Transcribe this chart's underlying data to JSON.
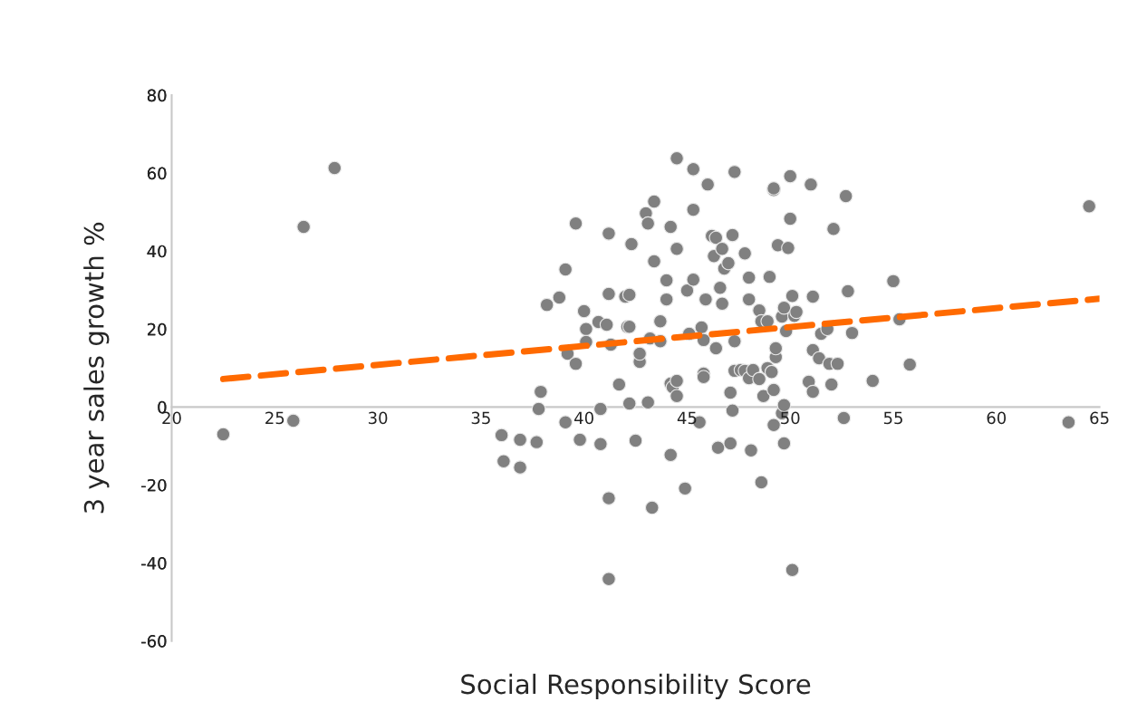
{
  "chart_data": {
    "type": "scatter",
    "xlabel": "Social Responsibility Score",
    "ylabel": "3 year sales growth %",
    "xlim": [
      20,
      65
    ],
    "xticks": [
      20,
      25,
      30,
      35,
      40,
      45,
      50,
      55,
      60,
      65
    ],
    "ylim": [
      -60,
      80
    ],
    "yticks": [
      -60,
      -40,
      -20,
      0,
      20,
      40,
      60,
      80
    ],
    "grid": false,
    "legend": false,
    "series": [
      {
        "color": "#808080",
        "marker": "circle",
        "x": [
          22.5,
          25.9,
          26.4,
          27.9,
          64.5,
          63.5,
          36.0,
          36.1,
          36.9,
          36.9,
          37.7,
          37.9,
          37.8,
          38.2,
          38.8,
          39.1,
          39.1,
          39.2,
          39.6,
          39.6,
          39.8,
          40.0,
          40.1,
          40.1,
          40.7,
          40.8,
          40.8,
          41.2,
          41.2,
          41.2,
          41.2,
          41.1,
          41.3,
          41.7,
          42.0,
          42.2,
          42.1,
          42.2,
          42.3,
          42.2,
          42.5,
          42.7,
          42.7,
          43.0,
          43.1,
          43.1,
          43.2,
          43.4,
          43.4,
          43.3,
          43.7,
          43.7,
          44.0,
          44.0,
          44.2,
          44.2,
          44.3,
          44.2,
          44.5,
          44.5,
          44.5,
          44.5,
          44.9,
          45.0,
          45.1,
          45.3,
          45.3,
          45.3,
          45.6,
          45.7,
          45.8,
          45.8,
          45.8,
          45.9,
          46.0,
          46.2,
          46.3,
          46.4,
          46.4,
          46.5,
          46.6,
          46.7,
          46.7,
          46.8,
          47.0,
          47.1,
          47.1,
          47.2,
          47.2,
          47.3,
          47.3,
          47.3,
          47.6,
          47.8,
          47.8,
          48.0,
          48.0,
          48.0,
          48.1,
          48.2,
          48.5,
          48.5,
          48.6,
          48.6,
          48.7,
          48.9,
          48.9,
          49.0,
          49.1,
          49.2,
          49.2,
          49.2,
          49.2,
          49.3,
          49.3,
          49.4,
          49.6,
          49.7,
          49.6,
          49.7,
          49.7,
          49.8,
          49.9,
          50.0,
          50.0,
          50.2,
          50.1,
          50.1,
          50.3,
          50.9,
          51.0,
          51.1,
          51.1,
          51.1,
          51.4,
          51.5,
          51.8,
          51.9,
          52.0,
          52.1,
          52.3,
          52.6,
          52.7,
          52.8,
          53.0,
          54.0,
          55.0,
          55.3,
          55.8
        ],
        "values": [
          -7.0,
          -3.5,
          46.2,
          61.3,
          51.5,
          -3.9,
          -7.2,
          -13.9,
          -15.5,
          -8.4,
          -9.0,
          3.9,
          -0.5,
          26.2,
          28.1,
          35.3,
          -3.9,
          13.7,
          11.1,
          47.1,
          -8.4,
          24.6,
          20.0,
          16.7,
          21.8,
          -0.5,
          -9.5,
          44.5,
          29.0,
          -23.4,
          -44.1,
          21.1,
          16.0,
          5.8,
          28.3,
          28.8,
          20.6,
          20.6,
          41.8,
          0.9,
          -8.6,
          11.6,
          13.7,
          49.7,
          47.1,
          1.2,
          17.6,
          52.7,
          37.4,
          -25.8,
          22.0,
          16.9,
          32.5,
          27.6,
          46.2,
          6.0,
          5.1,
          -12.3,
          40.6,
          6.7,
          2.8,
          63.8,
          -20.9,
          29.9,
          18.8,
          32.7,
          61.0,
          50.6,
          -3.9,
          20.4,
          17.2,
          8.6,
          7.7,
          27.6,
          57.1,
          43.9,
          38.7,
          43.4,
          15.1,
          -10.4,
          30.6,
          40.6,
          26.5,
          35.5,
          36.9,
          3.7,
          -9.3,
          -0.9,
          44.1,
          9.3,
          60.3,
          16.9,
          9.5,
          39.4,
          9.3,
          33.2,
          27.6,
          7.4,
          -11.1,
          9.5,
          7.2,
          24.8,
          22.0,
          -19.3,
          2.8,
          10.0,
          22.0,
          33.4,
          9.0,
          -4.6,
          55.7,
          56.1,
          4.4,
          12.8,
          15.1,
          41.5,
          23.2,
          25.5,
          -1.6,
          0.5,
          -9.3,
          19.5,
          40.8,
          48.3,
          59.2,
          23.4,
          28.5,
          -41.8,
          24.4,
          6.5,
          57.1,
          28.3,
          14.6,
          3.9,
          12.5,
          18.8,
          20.0,
          11.1,
          5.8,
          45.7,
          11.1,
          -2.8,
          54.1,
          29.7,
          19.0,
          6.7,
          32.3,
          22.5,
          10.9
        ]
      },
      {
        "type": "line",
        "color": "#ff6a00",
        "line_style": "dashed",
        "marker": "none",
        "x": [
          22.5,
          65
        ],
        "values": [
          7.2,
          27.8
        ]
      }
    ]
  }
}
